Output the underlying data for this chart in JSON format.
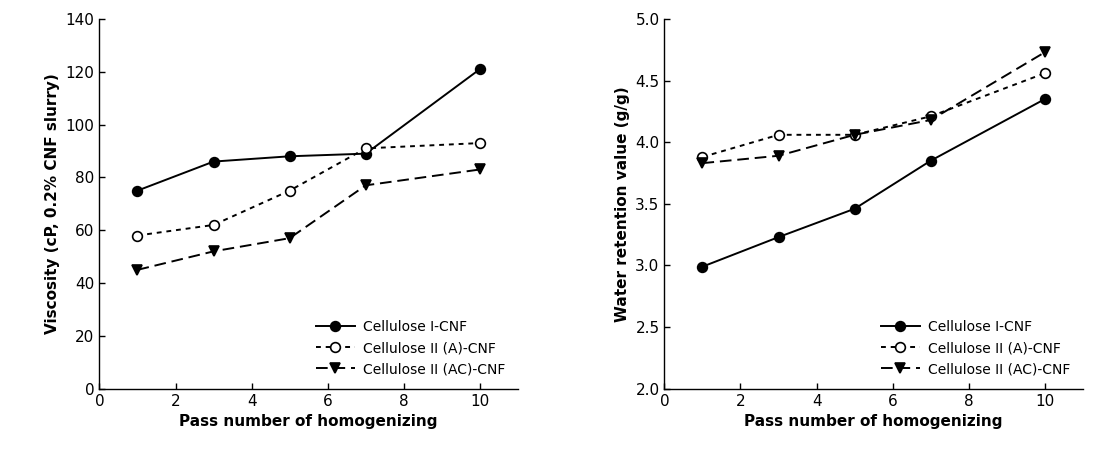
{
  "x": [
    1,
    3,
    5,
    7,
    10
  ],
  "left": {
    "ylabel": "Viscosity (cP, 0.2% CNF slurry)",
    "xlabel": "Pass number of homogenizing",
    "xlim": [
      0,
      11
    ],
    "ylim": [
      0,
      140
    ],
    "yticks": [
      0,
      20,
      40,
      60,
      80,
      100,
      120,
      140
    ],
    "xticks": [
      0,
      2,
      4,
      6,
      8,
      10
    ],
    "series": [
      {
        "label": "Cellulose I-CNF",
        "y": [
          75,
          86,
          88,
          89,
          121
        ],
        "marker": "o",
        "markerfc": "black",
        "markerec": "black",
        "linestyle": "solid",
        "markersize": 7
      },
      {
        "label": "Cellulose II (A)-CNF",
        "y": [
          58,
          62,
          75,
          91,
          93
        ],
        "marker": "o",
        "markerfc": "white",
        "markerec": "black",
        "linestyle": "dotted",
        "markersize": 7
      },
      {
        "label": "Cellulose II (AC)-CNF",
        "y": [
          45,
          52,
          57,
          77,
          83
        ],
        "marker": "v",
        "markerfc": "black",
        "markerec": "black",
        "linestyle": "dashed",
        "markersize": 7
      }
    ]
  },
  "right": {
    "ylabel": "Water retention value (g/g)",
    "xlabel": "Pass number of homogenizing",
    "xlim": [
      0,
      11
    ],
    "ylim": [
      2.0,
      5.0
    ],
    "yticks": [
      2.0,
      2.5,
      3.0,
      3.5,
      4.0,
      4.5,
      5.0
    ],
    "xticks": [
      0,
      2,
      4,
      6,
      8,
      10
    ],
    "series": [
      {
        "label": "Cellulose I-CNF",
        "y": [
          2.99,
          3.23,
          3.46,
          3.85,
          4.35
        ],
        "marker": "o",
        "markerfc": "black",
        "markerec": "black",
        "linestyle": "solid",
        "markersize": 7
      },
      {
        "label": "Cellulose II (A)-CNF",
        "y": [
          3.88,
          4.06,
          4.06,
          4.21,
          4.56
        ],
        "marker": "o",
        "markerfc": "white",
        "markerec": "black",
        "linestyle": "dotted",
        "markersize": 7
      },
      {
        "label": "Cellulose II (AC)-CNF",
        "y": [
          3.83,
          3.89,
          4.06,
          4.18,
          4.73
        ],
        "marker": "v",
        "markerfc": "black",
        "markerec": "black",
        "linestyle": "dashed",
        "markersize": 7
      }
    ]
  },
  "linewidth": 1.4,
  "markeredgewidth": 1.2,
  "tick_labelsize": 11,
  "axis_labelsize": 11,
  "legend_fontsize": 10,
  "background": "#ffffff"
}
